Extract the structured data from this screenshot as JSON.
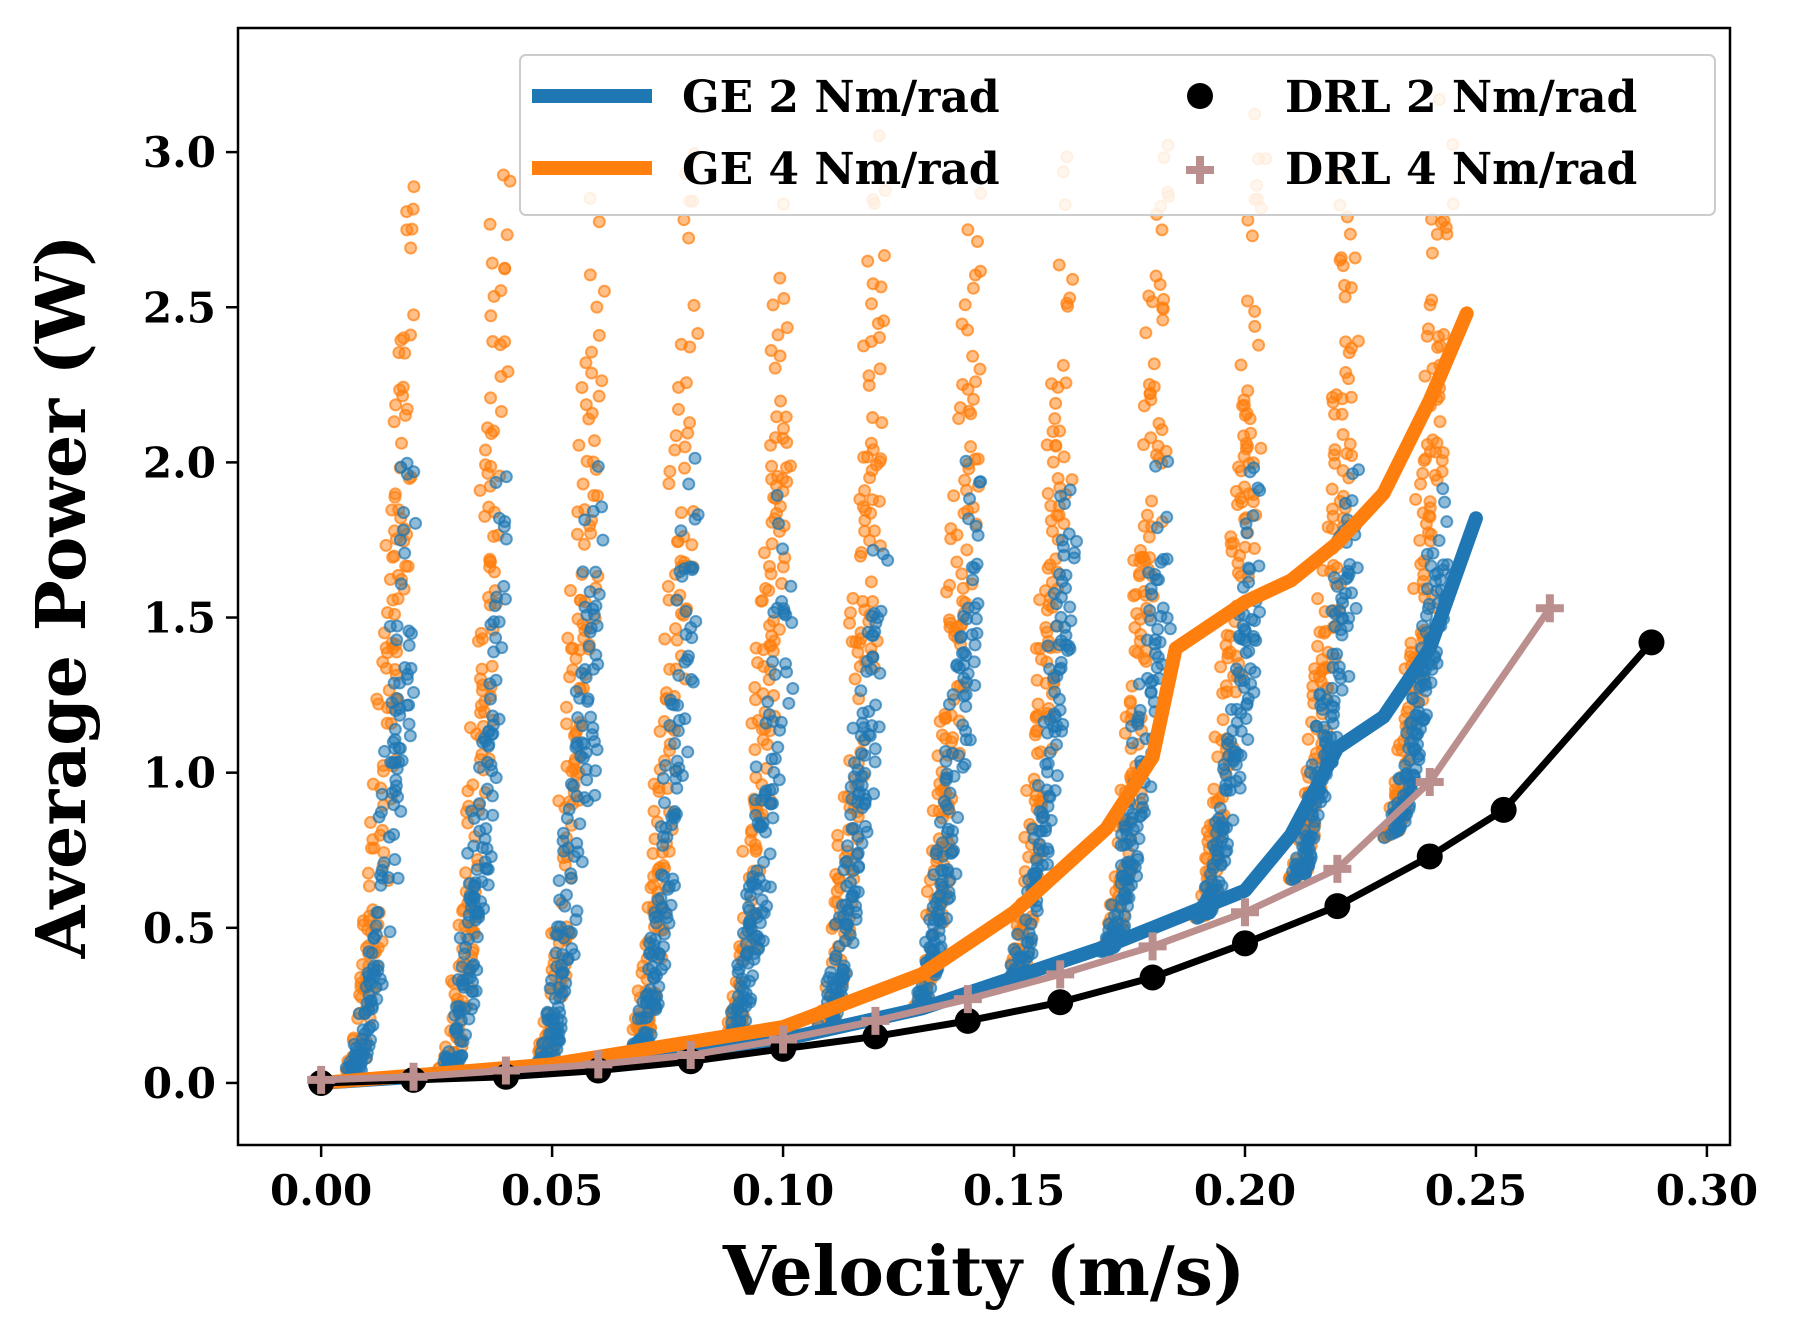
{
  "chart_data": {
    "type": "scatter",
    "xlabel": "Velocity (m/s)",
    "ylabel": "Average Power (W)",
    "xlim": [
      -0.018,
      0.305
    ],
    "ylim": [
      -0.2,
      3.4
    ],
    "xticks": [
      "0.00",
      "0.05",
      "0.10",
      "0.15",
      "0.20",
      "0.25",
      "0.30"
    ],
    "xtick_values": [
      0.0,
      0.05,
      0.1,
      0.15,
      0.2,
      0.25,
      0.3
    ],
    "yticks": [
      "0.0",
      "0.5",
      "1.0",
      "1.5",
      "2.0",
      "2.5",
      "3.0"
    ],
    "ytick_values": [
      0.0,
      0.5,
      1.0,
      1.5,
      2.0,
      2.5,
      3.0
    ],
    "grid": false,
    "legend_position": "top-right",
    "colors": {
      "ge2": "#1f77b4",
      "ge4": "#ff7f0e",
      "drl2": "#000000",
      "drl4": "#bc8f8f"
    },
    "series": [
      {
        "name": "GE 2 Nm/rad",
        "style": "thick-line",
        "color": "#1f77b4",
        "x": [
          0.0,
          0.05,
          0.1,
          0.13,
          0.15,
          0.17,
          0.18,
          0.19,
          0.2,
          0.21,
          0.22,
          0.23,
          0.24,
          0.25
        ],
        "y": [
          0.0,
          0.05,
          0.14,
          0.24,
          0.34,
          0.44,
          0.5,
          0.56,
          0.62,
          0.8,
          1.08,
          1.18,
          1.4,
          1.82
        ]
      },
      {
        "name": "GE 4 Nm/rad",
        "style": "thick-line",
        "color": "#ff7f0e",
        "x": [
          0.0,
          0.05,
          0.1,
          0.13,
          0.15,
          0.17,
          0.18,
          0.185,
          0.2,
          0.21,
          0.22,
          0.23,
          0.24,
          0.248
        ],
        "y": [
          0.0,
          0.06,
          0.18,
          0.35,
          0.55,
          0.82,
          1.05,
          1.4,
          1.55,
          1.62,
          1.74,
          1.9,
          2.2,
          2.48
        ]
      },
      {
        "name": "DRL 2 Nm/rad",
        "style": "line-circles",
        "color": "#000000",
        "x": [
          0.0,
          0.02,
          0.04,
          0.06,
          0.08,
          0.1,
          0.12,
          0.14,
          0.16,
          0.18,
          0.2,
          0.22,
          0.24,
          0.256,
          0.288
        ],
        "y": [
          0.0,
          0.01,
          0.02,
          0.04,
          0.07,
          0.11,
          0.15,
          0.2,
          0.26,
          0.34,
          0.45,
          0.57,
          0.73,
          0.88,
          1.42
        ]
      },
      {
        "name": "DRL 4 Nm/rad",
        "style": "line-plus",
        "color": "#bc8f8f",
        "x": [
          0.0,
          0.02,
          0.04,
          0.06,
          0.08,
          0.1,
          0.12,
          0.14,
          0.16,
          0.18,
          0.2,
          0.22,
          0.24,
          0.266
        ],
        "y": [
          0.01,
          0.02,
          0.04,
          0.06,
          0.09,
          0.14,
          0.2,
          0.27,
          0.35,
          0.44,
          0.55,
          0.69,
          0.97,
          1.53
        ]
      }
    ],
    "scatter_clouds": [
      {
        "name": "GE 4 Nm/rad raw",
        "color": "#ff7f0e",
        "top_max": 3.18,
        "velocity_max": 0.245,
        "columns": 12
      },
      {
        "name": "GE 2 Nm/rad raw",
        "color": "#1f77b4",
        "top_max": 2.08,
        "velocity_max": 0.245,
        "columns": 12
      }
    ]
  }
}
